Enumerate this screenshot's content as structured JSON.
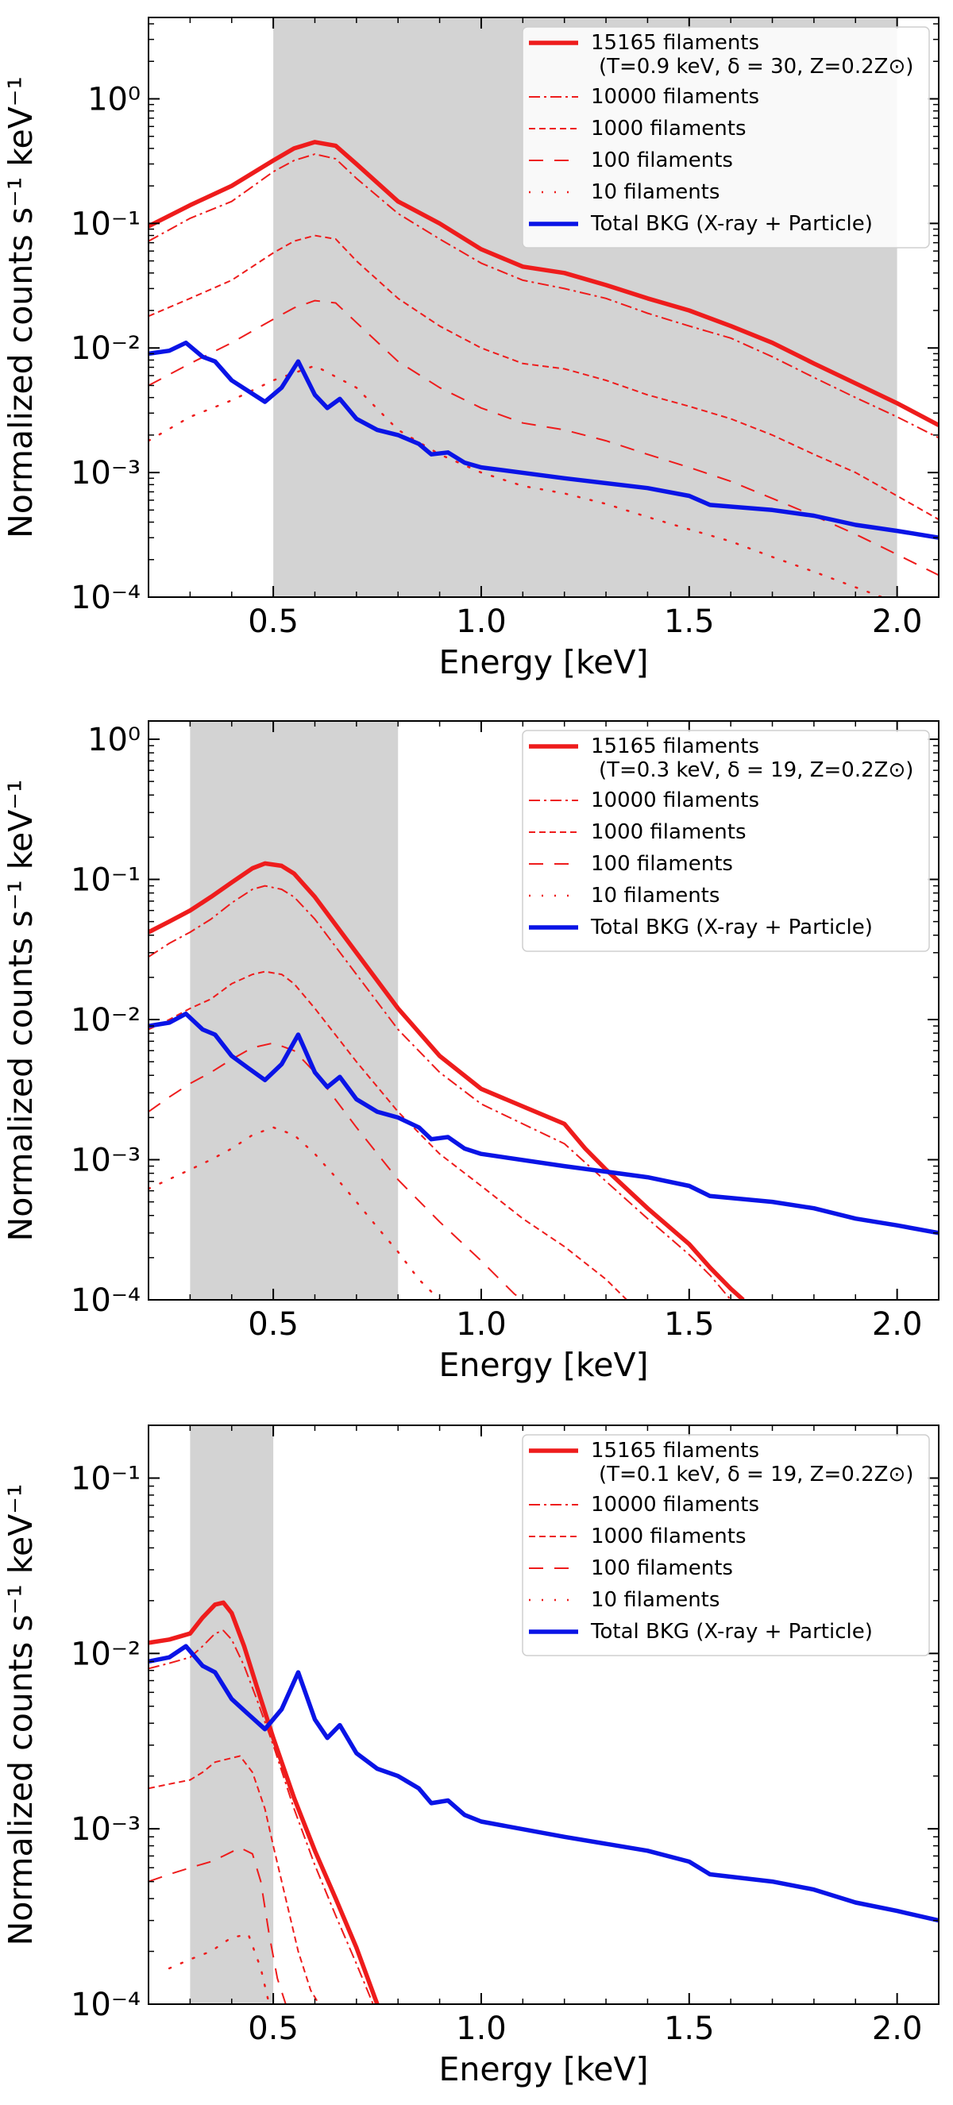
{
  "chart_data": [
    {
      "type": "line",
      "yscale": "log",
      "xlabel": "Energy [keV]",
      "ylabel": "Normalized  counts s⁻¹ keV⁻¹",
      "xlim": [
        0.2,
        2.1
      ],
      "ylim": [
        0.0001,
        4.5
      ],
      "xticks": [
        0.5,
        1.0,
        1.5,
        2.0
      ],
      "xtick_labels": [
        "0.5",
        "1.0",
        "1.5",
        "2.0"
      ],
      "yticks": [
        0.0001,
        0.001,
        0.01,
        0.1,
        1
      ],
      "ytick_labels": [
        "10⁻⁴",
        "10⁻³",
        "10⁻²",
        "10⁻¹",
        "10⁰"
      ],
      "shaded_band": [
        0.5,
        2.0
      ],
      "legend_position": "top-right",
      "legend_params": "(T=0.9 keV, δ = 30, Z=0.2Z⊙)",
      "series": [
        {
          "name": "15165 filaments",
          "style": "solid",
          "color": "#ee1c1c",
          "x": [
            0.2,
            0.3,
            0.4,
            0.5,
            0.55,
            0.6,
            0.65,
            0.7,
            0.8,
            0.9,
            1.0,
            1.1,
            1.2,
            1.3,
            1.4,
            1.5,
            1.6,
            1.7,
            1.8,
            1.9,
            2.0,
            2.1
          ],
          "y": [
            0.095,
            0.14,
            0.2,
            0.32,
            0.4,
            0.45,
            0.42,
            0.3,
            0.15,
            0.1,
            0.062,
            0.045,
            0.04,
            0.032,
            0.025,
            0.02,
            0.015,
            0.011,
            0.0075,
            0.0052,
            0.0036,
            0.0024
          ]
        },
        {
          "name": "10000 filaments",
          "style": "dashdot",
          "color": "#ee1c1c",
          "x": [
            0.2,
            0.3,
            0.4,
            0.5,
            0.55,
            0.6,
            0.65,
            0.7,
            0.8,
            0.9,
            1.0,
            1.1,
            1.2,
            1.3,
            1.4,
            1.5,
            1.6,
            1.7,
            1.8,
            1.9,
            2.0,
            2.1
          ],
          "y": [
            0.072,
            0.11,
            0.15,
            0.26,
            0.32,
            0.36,
            0.33,
            0.23,
            0.12,
            0.075,
            0.048,
            0.035,
            0.03,
            0.025,
            0.019,
            0.015,
            0.012,
            0.0085,
            0.0058,
            0.004,
            0.0028,
            0.0019
          ]
        },
        {
          "name": "1000 filaments",
          "style": "dashed",
          "color": "#ee1c1c",
          "x": [
            0.2,
            0.3,
            0.4,
            0.5,
            0.55,
            0.6,
            0.65,
            0.7,
            0.8,
            0.9,
            1.0,
            1.1,
            1.2,
            1.3,
            1.4,
            1.5,
            1.6,
            1.7,
            1.8,
            1.9,
            2.0,
            2.1
          ],
          "y": [
            0.018,
            0.025,
            0.035,
            0.058,
            0.072,
            0.08,
            0.075,
            0.05,
            0.025,
            0.015,
            0.01,
            0.0075,
            0.0068,
            0.0055,
            0.0042,
            0.0034,
            0.0027,
            0.002,
            0.0014,
            0.001,
            0.00065,
            0.00042
          ]
        },
        {
          "name": "100 filaments",
          "style": "longdash",
          "color": "#ee1c1c",
          "x": [
            0.2,
            0.3,
            0.4,
            0.5,
            0.55,
            0.6,
            0.65,
            0.7,
            0.8,
            0.9,
            1.0,
            1.1,
            1.2,
            1.3,
            1.4,
            1.5,
            1.6,
            1.7,
            1.8,
            1.9,
            2.0,
            2.1
          ],
          "y": [
            0.005,
            0.0075,
            0.011,
            0.017,
            0.021,
            0.024,
            0.023,
            0.016,
            0.0078,
            0.0048,
            0.0033,
            0.0025,
            0.0022,
            0.0018,
            0.0014,
            0.0011,
            0.00085,
            0.00062,
            0.00045,
            0.00032,
            0.00022,
            0.00015
          ]
        },
        {
          "name": "10 filaments",
          "style": "dotted",
          "color": "#ee1c1c",
          "x": [
            0.2,
            0.3,
            0.4,
            0.5,
            0.6,
            0.7,
            0.8,
            0.9,
            1.0,
            1.1,
            1.2,
            1.3,
            1.4,
            1.5,
            1.6,
            1.7,
            1.8,
            1.9,
            2.0
          ],
          "y": [
            0.0018,
            0.0028,
            0.0038,
            0.0055,
            0.0072,
            0.0048,
            0.0022,
            0.0014,
            0.001,
            0.00078,
            0.00068,
            0.00056,
            0.00044,
            0.00035,
            0.00028,
            0.00021,
            0.00016,
            0.00012,
            9e-05
          ]
        },
        {
          "name": "Total BKG (X-ray + Particle)",
          "style": "solid",
          "color": "#0a14e6",
          "x": [
            0.2,
            0.25,
            0.29,
            0.33,
            0.36,
            0.4,
            0.44,
            0.48,
            0.52,
            0.56,
            0.6,
            0.63,
            0.66,
            0.7,
            0.75,
            0.8,
            0.85,
            0.88,
            0.92,
            0.96,
            1.0,
            1.2,
            1.4,
            1.5,
            1.55,
            1.7,
            1.8,
            1.9,
            2.0,
            2.1
          ],
          "y": [
            0.009,
            0.0095,
            0.011,
            0.0085,
            0.0078,
            0.0055,
            0.0045,
            0.0037,
            0.0048,
            0.0078,
            0.0042,
            0.0033,
            0.0039,
            0.0027,
            0.0022,
            0.002,
            0.0017,
            0.0014,
            0.00145,
            0.0012,
            0.0011,
            0.0009,
            0.00075,
            0.00065,
            0.00055,
            0.0005,
            0.00045,
            0.00038,
            0.00034,
            0.0003
          ]
        }
      ]
    },
    {
      "type": "line",
      "yscale": "log",
      "xlabel": "Energy [keV]",
      "ylabel": "Normalized  counts s⁻¹ keV⁻¹",
      "xlim": [
        0.2,
        2.1
      ],
      "ylim": [
        0.0001,
        1.35
      ],
      "xticks": [
        0.5,
        1.0,
        1.5,
        2.0
      ],
      "xtick_labels": [
        "0.5",
        "1.0",
        "1.5",
        "2.0"
      ],
      "yticks": [
        0.0001,
        0.001,
        0.01,
        0.1,
        1
      ],
      "ytick_labels": [
        "10⁻⁴",
        "10⁻³",
        "10⁻²",
        "10⁻¹",
        "10⁰"
      ],
      "shaded_band": [
        0.3,
        0.8
      ],
      "legend_position": "top-right",
      "legend_params": "(T=0.3 keV, δ = 19, Z=0.2Z⊙)",
      "series": [
        {
          "name": "15165 filaments",
          "style": "solid",
          "color": "#ee1c1c",
          "x": [
            0.2,
            0.25,
            0.3,
            0.35,
            0.4,
            0.45,
            0.48,
            0.52,
            0.55,
            0.6,
            0.7,
            0.8,
            0.9,
            1.0,
            1.1,
            1.2,
            1.25,
            1.3,
            1.4,
            1.5,
            1.55,
            1.6,
            1.63
          ],
          "y": [
            0.042,
            0.05,
            0.06,
            0.075,
            0.095,
            0.12,
            0.13,
            0.125,
            0.11,
            0.075,
            0.03,
            0.012,
            0.0055,
            0.0032,
            0.0024,
            0.0018,
            0.0012,
            0.00085,
            0.00045,
            0.00025,
            0.00017,
            0.00012,
            0.0001
          ]
        },
        {
          "name": "10000 filaments",
          "style": "dashdot",
          "color": "#ee1c1c",
          "x": [
            0.2,
            0.25,
            0.3,
            0.35,
            0.4,
            0.45,
            0.48,
            0.52,
            0.55,
            0.6,
            0.7,
            0.8,
            0.9,
            1.0,
            1.1,
            1.2,
            1.3,
            1.4,
            1.5,
            1.55,
            1.6
          ],
          "y": [
            0.028,
            0.035,
            0.042,
            0.052,
            0.068,
            0.085,
            0.09,
            0.085,
            0.075,
            0.052,
            0.021,
            0.0085,
            0.0042,
            0.0025,
            0.0018,
            0.0013,
            0.0007,
            0.00038,
            0.00021,
            0.00015,
            0.0001
          ]
        },
        {
          "name": "1000 filaments",
          "style": "dashed",
          "color": "#ee1c1c",
          "x": [
            0.2,
            0.25,
            0.3,
            0.35,
            0.4,
            0.45,
            0.48,
            0.52,
            0.55,
            0.6,
            0.7,
            0.8,
            0.9,
            1.0,
            1.1,
            1.2,
            1.3,
            1.35
          ],
          "y": [
            0.0085,
            0.01,
            0.012,
            0.014,
            0.018,
            0.021,
            0.022,
            0.021,
            0.018,
            0.012,
            0.005,
            0.0022,
            0.0011,
            0.00065,
            0.00038,
            0.00024,
            0.00014,
            0.0001
          ]
        },
        {
          "name": "100 filaments",
          "style": "longdash",
          "color": "#ee1c1c",
          "x": [
            0.2,
            0.25,
            0.3,
            0.35,
            0.4,
            0.45,
            0.5,
            0.55,
            0.6,
            0.7,
            0.8,
            0.9,
            1.0,
            1.08,
            1.1
          ],
          "y": [
            0.0022,
            0.0028,
            0.0035,
            0.0042,
            0.0052,
            0.0063,
            0.0068,
            0.006,
            0.0042,
            0.0017,
            0.00072,
            0.00036,
            0.00019,
            0.00011,
            0.0001
          ]
        },
        {
          "name": "10 filaments",
          "style": "dotted",
          "color": "#ee1c1c",
          "x": [
            0.2,
            0.3,
            0.35,
            0.4,
            0.45,
            0.5,
            0.55,
            0.6,
            0.65,
            0.7,
            0.75,
            0.8,
            0.85,
            0.9
          ],
          "y": [
            0.00062,
            0.00085,
            0.001,
            0.0012,
            0.0015,
            0.0017,
            0.0015,
            0.0011,
            0.00075,
            0.0005,
            0.00033,
            0.00022,
            0.00014,
            0.0001
          ]
        },
        {
          "name": "Total BKG (X-ray + Particle)",
          "style": "solid",
          "color": "#0a14e6",
          "x": [
            0.2,
            0.25,
            0.29,
            0.33,
            0.36,
            0.4,
            0.44,
            0.48,
            0.52,
            0.56,
            0.6,
            0.63,
            0.66,
            0.7,
            0.75,
            0.8,
            0.85,
            0.88,
            0.92,
            0.96,
            1.0,
            1.2,
            1.4,
            1.5,
            1.55,
            1.7,
            1.8,
            1.9,
            2.0,
            2.1
          ],
          "y": [
            0.009,
            0.0095,
            0.011,
            0.0085,
            0.0078,
            0.0055,
            0.0045,
            0.0037,
            0.0048,
            0.0078,
            0.0042,
            0.0033,
            0.0039,
            0.0027,
            0.0022,
            0.002,
            0.0017,
            0.0014,
            0.00145,
            0.0012,
            0.0011,
            0.0009,
            0.00075,
            0.00065,
            0.00055,
            0.0005,
            0.00045,
            0.00038,
            0.00034,
            0.0003
          ]
        }
      ]
    },
    {
      "type": "line",
      "yscale": "log",
      "xlabel": "Energy [keV]",
      "ylabel": "Normalized  counts s⁻¹ keV⁻¹",
      "xlim": [
        0.2,
        2.1
      ],
      "ylim": [
        0.0001,
        0.2
      ],
      "xticks": [
        0.5,
        1.0,
        1.5,
        2.0
      ],
      "xtick_labels": [
        "0.5",
        "1.0",
        "1.5",
        "2.0"
      ],
      "yticks": [
        0.0001,
        0.001,
        0.01,
        0.1
      ],
      "ytick_labels": [
        "10⁻⁴",
        "10⁻³",
        "10⁻²",
        "10⁻¹"
      ],
      "shaded_band": [
        0.3,
        0.5
      ],
      "legend_position": "top-right",
      "legend_params": "(T=0.1 keV, δ = 19, Z=0.2Z⊙)",
      "series": [
        {
          "name": "15165 filaments",
          "style": "solid",
          "color": "#ee1c1c",
          "x": [
            0.2,
            0.25,
            0.3,
            0.33,
            0.36,
            0.38,
            0.4,
            0.43,
            0.46,
            0.5,
            0.55,
            0.6,
            0.65,
            0.7,
            0.75
          ],
          "y": [
            0.0115,
            0.012,
            0.013,
            0.016,
            0.019,
            0.0195,
            0.017,
            0.011,
            0.0065,
            0.0033,
            0.0015,
            0.00075,
            0.0004,
            0.00021,
            0.0001
          ]
        },
        {
          "name": "10000 filaments",
          "style": "dashdot",
          "color": "#ee1c1c",
          "x": [
            0.2,
            0.25,
            0.3,
            0.33,
            0.36,
            0.38,
            0.4,
            0.43,
            0.46,
            0.5,
            0.55,
            0.6,
            0.65,
            0.7,
            0.74
          ],
          "y": [
            0.0082,
            0.0088,
            0.0095,
            0.011,
            0.013,
            0.0135,
            0.012,
            0.0085,
            0.0055,
            0.003,
            0.0013,
            0.00062,
            0.00032,
            0.00017,
            0.0001
          ]
        },
        {
          "name": "1000 filaments",
          "style": "dashed",
          "color": "#ee1c1c",
          "x": [
            0.2,
            0.25,
            0.3,
            0.33,
            0.36,
            0.39,
            0.42,
            0.45,
            0.48,
            0.5,
            0.53,
            0.56,
            0.59,
            0.61
          ],
          "y": [
            0.0017,
            0.0018,
            0.0019,
            0.0021,
            0.0024,
            0.0025,
            0.0026,
            0.0021,
            0.0013,
            0.0008,
            0.0004,
            0.0002,
            0.00012,
            0.0001
          ]
        },
        {
          "name": "100 filaments",
          "style": "longdash",
          "color": "#ee1c1c",
          "x": [
            0.2,
            0.25,
            0.3,
            0.35,
            0.38,
            0.42,
            0.45,
            0.47,
            0.49,
            0.51,
            0.53
          ],
          "y": [
            0.0005,
            0.00055,
            0.0006,
            0.00065,
            0.0007,
            0.00078,
            0.00072,
            0.0005,
            0.00025,
            0.00014,
            0.0001
          ]
        },
        {
          "name": "10 filaments",
          "style": "dotted",
          "color": "#ee1c1c",
          "x": [
            0.25,
            0.3,
            0.35,
            0.4,
            0.44,
            0.47,
            0.49
          ],
          "y": [
            0.00016,
            0.00018,
            0.0002,
            0.00024,
            0.00025,
            0.00016,
            0.0001
          ]
        },
        {
          "name": "Total BKG (X-ray + Particle)",
          "style": "solid",
          "color": "#0a14e6",
          "x": [
            0.2,
            0.25,
            0.29,
            0.33,
            0.36,
            0.4,
            0.44,
            0.48,
            0.52,
            0.56,
            0.6,
            0.63,
            0.66,
            0.7,
            0.75,
            0.8,
            0.85,
            0.88,
            0.92,
            0.96,
            1.0,
            1.2,
            1.4,
            1.5,
            1.55,
            1.7,
            1.8,
            1.9,
            2.0,
            2.1
          ],
          "y": [
            0.009,
            0.0095,
            0.011,
            0.0085,
            0.0078,
            0.0055,
            0.0045,
            0.0037,
            0.0048,
            0.0078,
            0.0042,
            0.0033,
            0.0039,
            0.0027,
            0.0022,
            0.002,
            0.0017,
            0.0014,
            0.00145,
            0.0012,
            0.0011,
            0.0009,
            0.00075,
            0.00065,
            0.00055,
            0.0005,
            0.00045,
            0.00038,
            0.00034,
            0.0003
          ]
        }
      ]
    }
  ]
}
